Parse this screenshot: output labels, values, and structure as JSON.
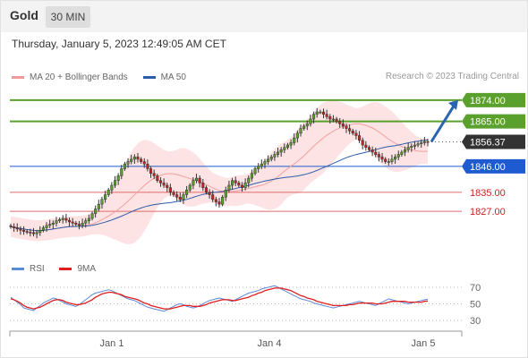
{
  "header": {
    "title": "Gold",
    "timeframe": "30 MIN"
  },
  "timestamp": "Thursday, January 5, 2023 12:49:05 AM CET",
  "legend": [
    {
      "label": "MA 20 + Bollinger Bands",
      "color": "#f39a9a"
    },
    {
      "label": "MA 50",
      "color": "#2c5da8"
    }
  ],
  "credit": "Research © 2023 Trading Central",
  "rsi_legend": [
    {
      "label": "RSI",
      "color": "#5b8ad9"
    },
    {
      "label": "9MA",
      "color": "#e11d1d"
    }
  ],
  "colors": {
    "resistance": "#5aa02c",
    "pivot": "#1f5bd0",
    "support": "#e06a6a",
    "support_text": "#cc1f1f",
    "last_price": "#333333",
    "bands_fill": "#fcd9d9",
    "ma20": "#f3a0a0",
    "ma50": "#2c5da8",
    "candle": "#333333",
    "up_candle_body": "#5aa02c",
    "down_candle_body": "#cc2222",
    "rsi": "#5b8ad9",
    "rsi_ma": "#e11d1d",
    "arrow": "#2a63b0"
  },
  "chart_data": {
    "type": "candlestick",
    "ylim": [
      1810,
      1880
    ],
    "x_tick_labels": [
      "Jan 1",
      "Jan 4",
      "Jan 5"
    ],
    "levels": [
      {
        "value": 1874.0,
        "label": "1874.00",
        "kind": "resistance"
      },
      {
        "value": 1865.0,
        "label": "1865.00",
        "kind": "resistance"
      },
      {
        "value": 1856.37,
        "label": "1856.37",
        "kind": "last"
      },
      {
        "value": 1846.0,
        "label": "1846.00",
        "kind": "pivot"
      },
      {
        "value": 1835.0,
        "label": "1835.00",
        "kind": "support"
      },
      {
        "value": 1827.0,
        "label": "1827.00",
        "kind": "support"
      }
    ],
    "forecast": {
      "from": 1856.4,
      "to": 1874.0,
      "direction": "up"
    },
    "closes": [
      1820.5,
      1820,
      1819.5,
      1819,
      1818.5,
      1818.2,
      1818,
      1817.5,
      1818,
      1819,
      1820,
      1821,
      1821.5,
      1822,
      1823,
      1823.5,
      1824,
      1823.2,
      1822.5,
      1822,
      1821.5,
      1821,
      1822,
      1823,
      1824,
      1826,
      1828,
      1830,
      1832,
      1834,
      1836,
      1838,
      1840,
      1842,
      1845,
      1847,
      1848,
      1849,
      1850,
      1849,
      1848,
      1847,
      1845,
      1843,
      1842,
      1840,
      1839,
      1838,
      1837,
      1835,
      1834,
      1833,
      1832,
      1834,
      1836,
      1838,
      1840,
      1841,
      1839,
      1837,
      1835,
      1834,
      1832,
      1831,
      1830,
      1833,
      1836,
      1838,
      1840,
      1839,
      1838,
      1837,
      1839,
      1841,
      1843,
      1845,
      1846,
      1847,
      1848,
      1849,
      1850,
      1851,
      1852,
      1853,
      1854,
      1855,
      1856,
      1858,
      1860,
      1862,
      1863,
      1864,
      1866,
      1868,
      1869,
      1869,
      1868,
      1867,
      1866,
      1866,
      1865,
      1864,
      1863,
      1862,
      1861,
      1860,
      1859,
      1857,
      1855,
      1854,
      1853,
      1852,
      1851,
      1850,
      1849,
      1848,
      1848,
      1849,
      1850,
      1851,
      1852,
      1853,
      1854,
      1854.5,
      1855,
      1855.5,
      1856,
      1856.5,
      1856.37
    ],
    "rsi_scale": [
      30,
      50,
      70
    ],
    "rsi": [
      58,
      55,
      52,
      49,
      45,
      44,
      43,
      42,
      45,
      48,
      51,
      53,
      55,
      57,
      56,
      54,
      52,
      50,
      49,
      48,
      47,
      49,
      52,
      55,
      58,
      61,
      63,
      64,
      65,
      66,
      67,
      66,
      64,
      62,
      60,
      58,
      56,
      55,
      54,
      52,
      50,
      48,
      46,
      45,
      44,
      43,
      42,
      41,
      43,
      45,
      47,
      49,
      50,
      49,
      47,
      46,
      45,
      46,
      48,
      50,
      52,
      54,
      55,
      56,
      57,
      56,
      55,
      54,
      53,
      55,
      57,
      59,
      61,
      63,
      64,
      65,
      66,
      68,
      69,
      70,
      71,
      72,
      70,
      68,
      66,
      64,
      62,
      60,
      58,
      56,
      55,
      54,
      53,
      51,
      50,
      49,
      48,
      47,
      46,
      45,
      46,
      47,
      48,
      49,
      50,
      51,
      52,
      53,
      52,
      51,
      50,
      49,
      48,
      50,
      52,
      54,
      56,
      55,
      54,
      53,
      52,
      51,
      50,
      51,
      52,
      53,
      54,
      55,
      55.5
    ],
    "rsi_ma": [
      56,
      55,
      53,
      51,
      48,
      46,
      45,
      44,
      45,
      46,
      48,
      50,
      52,
      54,
      55,
      55,
      54,
      52,
      51,
      50,
      49,
      49,
      50,
      51,
      53,
      55,
      58,
      60,
      62,
      63,
      64,
      64,
      63,
      62,
      61,
      59,
      58,
      57,
      56,
      55,
      53,
      51,
      50,
      48,
      47,
      46,
      45,
      44,
      44,
      44,
      45,
      46,
      47,
      48,
      48,
      48,
      47,
      47,
      47,
      48,
      49,
      51,
      52,
      53,
      54,
      55,
      55,
      55,
      54,
      54,
      55,
      56,
      57,
      58,
      60,
      61,
      63,
      64,
      66,
      67,
      68,
      69,
      69,
      69,
      68,
      67,
      66,
      64,
      62,
      60,
      59,
      57,
      56,
      55,
      53,
      52,
      51,
      50,
      49,
      48,
      48,
      48,
      48,
      48,
      49,
      49,
      50,
      51,
      51,
      51,
      51,
      51,
      50,
      50,
      50,
      51,
      52,
      53,
      53,
      53,
      53,
      53,
      52,
      52,
      52,
      52,
      52,
      53,
      53.5
    ]
  }
}
